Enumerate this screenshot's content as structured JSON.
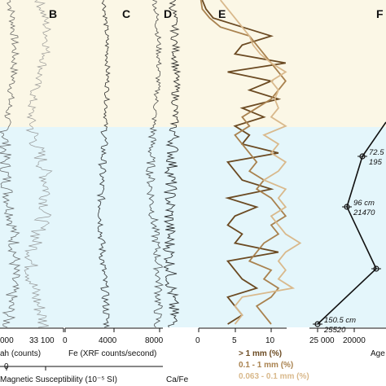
{
  "chart_data": {
    "type": "line",
    "colors": {
      "zone_upper": "#fbf7e6",
      "zone_lower": "#e4f6fb",
      "coarse": "#6b4a22",
      "medium": "#a9824f",
      "fine": "#d9b98c",
      "trace": "#333333"
    },
    "panels": [
      {
        "letter": "B",
        "label_partial": "",
        "ticks": [
          "33 100"
        ]
      },
      {
        "letter": "C",
        "label": "Fe (XRF counts/second)",
        "ticks": [
          "4000"
        ]
      },
      {
        "letter": "D",
        "ticks": [
          "8000"
        ],
        "xlabel": "Ca/Fe"
      },
      {
        "letter": "E",
        "ticks": [
          "0",
          "5",
          "10"
        ]
      },
      {
        "letter": "F",
        "ticks": [
          "25 000",
          "20000"
        ],
        "xlabel_partial": "Age"
      }
    ],
    "left_axis": {
      "ticks": [
        "000"
      ],
      "label_partial": "ah (counts)"
    },
    "second_axis": {
      "ticks": [
        "0"
      ],
      "label": "Magnetic Susceptibility (10⁻⁵ SI)"
    },
    "panel_c_tick_left": "0",
    "grain_size": {
      "series": [
        {
          "name": "> 1 mm (%)",
          "key": "coarse",
          "values": [
            0.5,
            1,
            2,
            6,
            10,
            6,
            5,
            12,
            4,
            10,
            7,
            11,
            6,
            9,
            5,
            7,
            6,
            11,
            4,
            5,
            6,
            10,
            4,
            8,
            5,
            4,
            6,
            5,
            11,
            4,
            5,
            6,
            8,
            4,
            5,
            6,
            4
          ]
        },
        {
          "name": "0.1 - 1 mm (%)",
          "key": "medium",
          "values": [
            0.3,
            0.5,
            1.5,
            3,
            7,
            8,
            9,
            10,
            11,
            12,
            11,
            10,
            8,
            6,
            7,
            5,
            6,
            7,
            8,
            7,
            9,
            8,
            10,
            11,
            12,
            10,
            11,
            9,
            8,
            7,
            10,
            9,
            11,
            10,
            8,
            9,
            10
          ]
        },
        {
          "name": "0.063 - 0.1 mm (%)",
          "key": "fine",
          "values": [
            3,
            4,
            5,
            6,
            7,
            7.5,
            8.5,
            10,
            12,
            10,
            11,
            10.5,
            11,
            10,
            12,
            9,
            11,
            10,
            12,
            11,
            9,
            12,
            11,
            12,
            10,
            11,
            12,
            14,
            12,
            11,
            12,
            11,
            13,
            6,
            5,
            6,
            5
          ]
        }
      ]
    },
    "age_depth": {
      "points": [
        {
          "depth_label": "72.5",
          "age_label": "195"
        },
        {
          "depth_label": "96 cm",
          "age_label": "21470"
        },
        {
          "depth_label": "",
          "age_label": ""
        },
        {
          "depth_label": "150.5 cm",
          "age_label": "25520"
        }
      ]
    }
  }
}
